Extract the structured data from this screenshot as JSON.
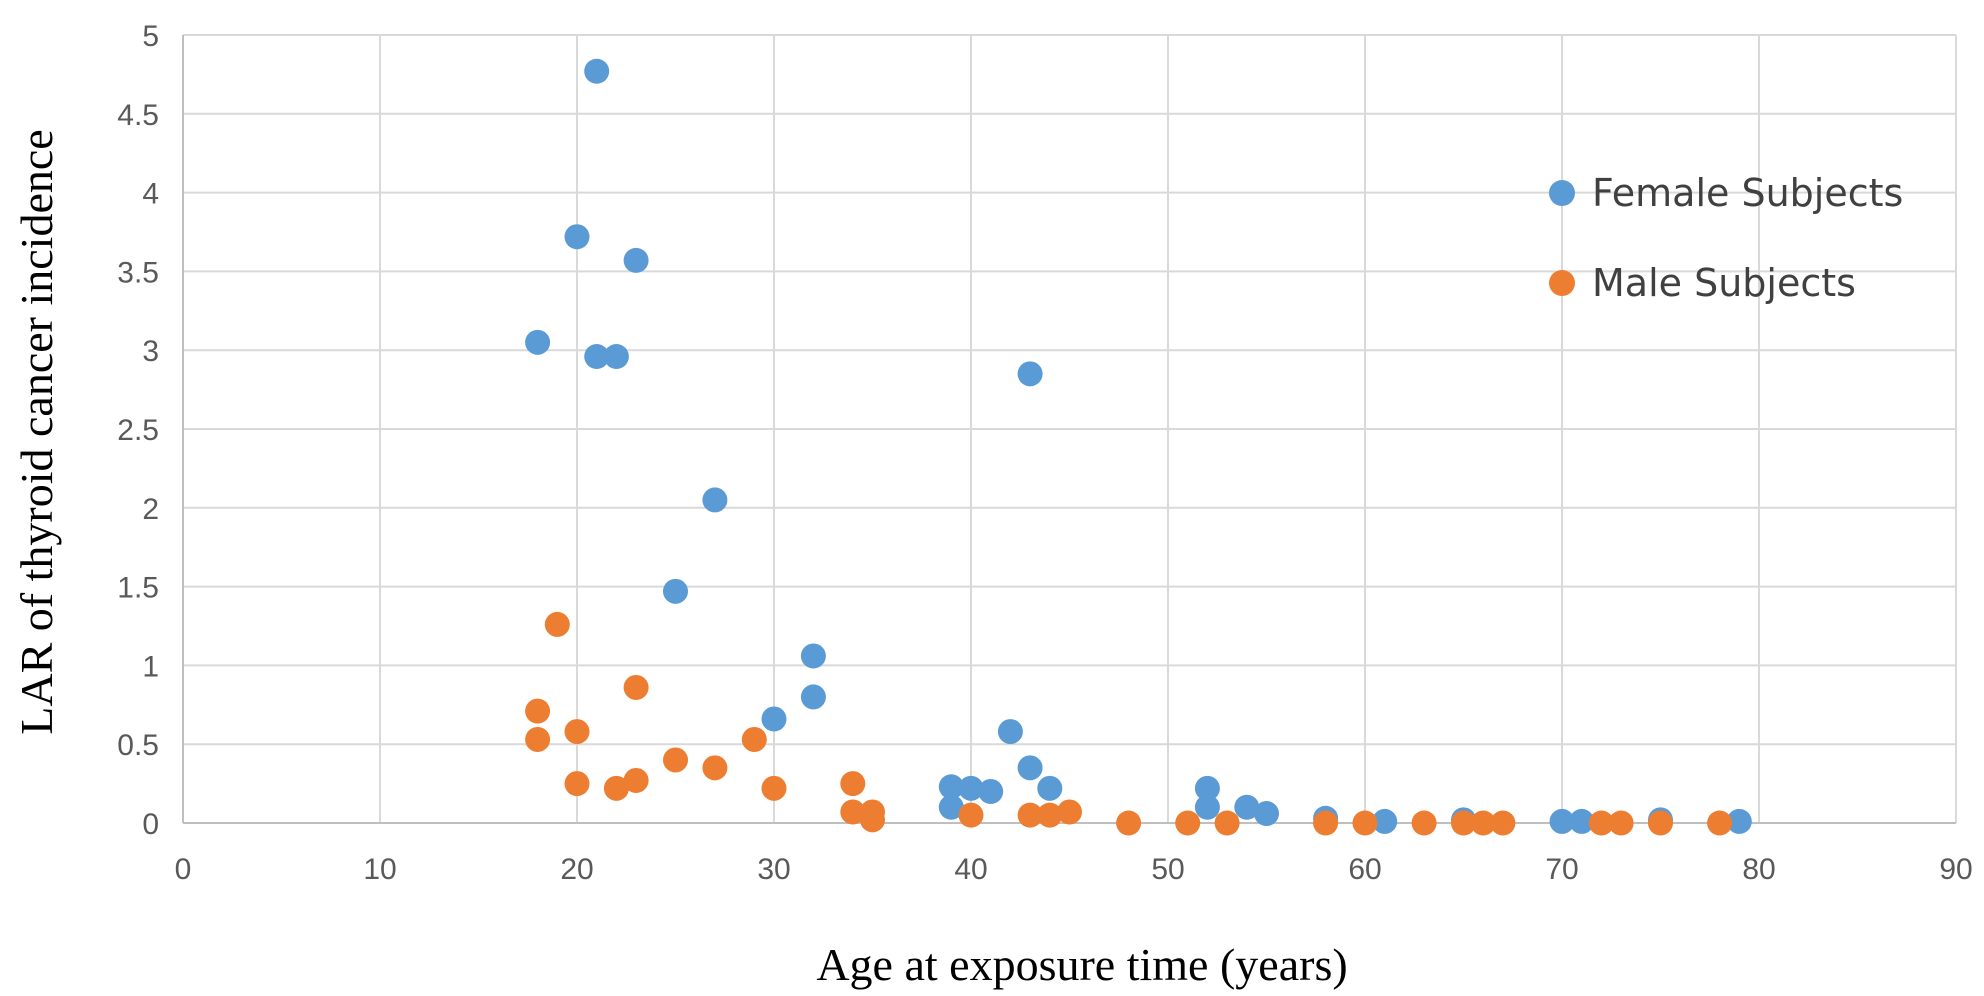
{
  "chart_data": {
    "type": "scatter",
    "title": "",
    "xlabel": "Age at exposure time (years)",
    "ylabel": "LAR of thyroid cancer incidence",
    "xlim": [
      0,
      90
    ],
    "ylim": [
      0,
      5
    ],
    "xticks": [
      0,
      10,
      20,
      30,
      40,
      50,
      60,
      70,
      80,
      90
    ],
    "yticks": [
      0,
      0.5,
      1,
      1.5,
      2,
      2.5,
      3,
      3.5,
      4,
      4.5,
      5
    ],
    "xtick_labels": [
      "0",
      "10",
      "20",
      "30",
      "40",
      "50",
      "60",
      "70",
      "80",
      "90"
    ],
    "ytick_labels": [
      "0",
      "0.5",
      "1",
      "1.5",
      "2",
      "2.5",
      "3",
      "3.5",
      "4",
      "4.5",
      "5"
    ],
    "grid": true,
    "legend_position": "right",
    "series": [
      {
        "name": "Female Subjects",
        "color": "#5b9bd5",
        "points": [
          {
            "x": 18,
            "y": 3.05
          },
          {
            "x": 20,
            "y": 3.72
          },
          {
            "x": 21,
            "y": 4.77
          },
          {
            "x": 21,
            "y": 2.96
          },
          {
            "x": 22,
            "y": 2.96
          },
          {
            "x": 23,
            "y": 3.57
          },
          {
            "x": 25,
            "y": 1.47
          },
          {
            "x": 27,
            "y": 2.05
          },
          {
            "x": 30,
            "y": 0.66
          },
          {
            "x": 32,
            "y": 1.06
          },
          {
            "x": 32,
            "y": 0.8
          },
          {
            "x": 39,
            "y": 0.23
          },
          {
            "x": 39,
            "y": 0.1
          },
          {
            "x": 40,
            "y": 0.22
          },
          {
            "x": 41,
            "y": 0.2
          },
          {
            "x": 42,
            "y": 0.58
          },
          {
            "x": 43,
            "y": 2.85
          },
          {
            "x": 43,
            "y": 0.35
          },
          {
            "x": 44,
            "y": 0.22
          },
          {
            "x": 52,
            "y": 0.22
          },
          {
            "x": 52,
            "y": 0.1
          },
          {
            "x": 54,
            "y": 0.1
          },
          {
            "x": 55,
            "y": 0.06
          },
          {
            "x": 58,
            "y": 0.03
          },
          {
            "x": 61,
            "y": 0.01
          },
          {
            "x": 65,
            "y": 0.02
          },
          {
            "x": 70,
            "y": 0.01
          },
          {
            "x": 71,
            "y": 0.01
          },
          {
            "x": 75,
            "y": 0.02
          },
          {
            "x": 79,
            "y": 0.01
          }
        ]
      },
      {
        "name": "Male Subjects",
        "color": "#ed7d31",
        "points": [
          {
            "x": 18,
            "y": 0.71
          },
          {
            "x": 18,
            "y": 0.53
          },
          {
            "x": 19,
            "y": 1.26
          },
          {
            "x": 20,
            "y": 0.58
          },
          {
            "x": 20,
            "y": 0.25
          },
          {
            "x": 22,
            "y": 0.22
          },
          {
            "x": 23,
            "y": 0.86
          },
          {
            "x": 23,
            "y": 0.27
          },
          {
            "x": 25,
            "y": 0.4
          },
          {
            "x": 27,
            "y": 0.35
          },
          {
            "x": 29,
            "y": 0.53
          },
          {
            "x": 30,
            "y": 0.22
          },
          {
            "x": 34,
            "y": 0.25
          },
          {
            "x": 34,
            "y": 0.07
          },
          {
            "x": 35,
            "y": 0.07
          },
          {
            "x": 35,
            "y": 0.02
          },
          {
            "x": 40,
            "y": 0.05
          },
          {
            "x": 43,
            "y": 0.05
          },
          {
            "x": 44,
            "y": 0.05
          },
          {
            "x": 45,
            "y": 0.07
          },
          {
            "x": 48,
            "y": 0.0
          },
          {
            "x": 51,
            "y": 0.0
          },
          {
            "x": 53,
            "y": 0.0
          },
          {
            "x": 58,
            "y": 0.0
          },
          {
            "x": 60,
            "y": 0.0
          },
          {
            "x": 63,
            "y": 0.0
          },
          {
            "x": 65,
            "y": 0.0
          },
          {
            "x": 66,
            "y": 0.0
          },
          {
            "x": 67,
            "y": 0.0
          },
          {
            "x": 72,
            "y": 0.0
          },
          {
            "x": 73,
            "y": 0.0
          },
          {
            "x": 75,
            "y": 0.0
          },
          {
            "x": 78,
            "y": 0.0
          }
        ]
      }
    ]
  }
}
